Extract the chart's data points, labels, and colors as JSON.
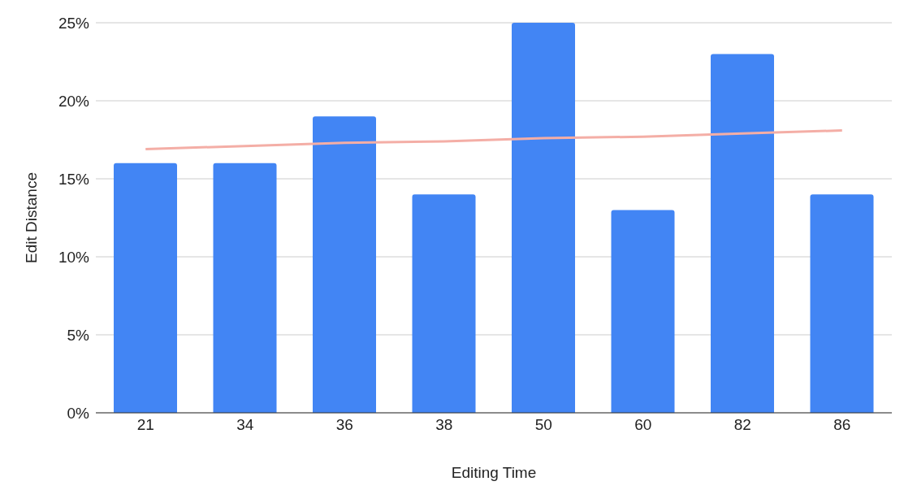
{
  "chart_data": {
    "type": "bar",
    "xlabel": "Editing Time",
    "ylabel": "Edit Distance",
    "categories": [
      "21",
      "34",
      "36",
      "38",
      "50",
      "60",
      "82",
      "86"
    ],
    "series": [
      {
        "color": "#4285f4",
        "values": [
          16,
          16,
          19,
          14,
          25,
          13,
          23,
          14
        ]
      },
      {
        "type": "line",
        "color": "#f4aea6",
        "values": [
          16.9,
          17.1,
          17.3,
          17.4,
          17.6,
          17.7,
          17.9,
          18.1
        ]
      }
    ],
    "ylim": [
      0,
      25
    ],
    "yticks": [
      {
        "value": 0,
        "label": "0%"
      },
      {
        "value": 5,
        "label": "5%"
      },
      {
        "value": 10,
        "label": "10%"
      },
      {
        "value": 15,
        "label": "15%"
      },
      {
        "value": 20,
        "label": "20%"
      },
      {
        "value": 25,
        "label": "25%"
      }
    ],
    "grid": "y",
    "legend": false,
    "marker": "none",
    "line_style": "solid"
  }
}
